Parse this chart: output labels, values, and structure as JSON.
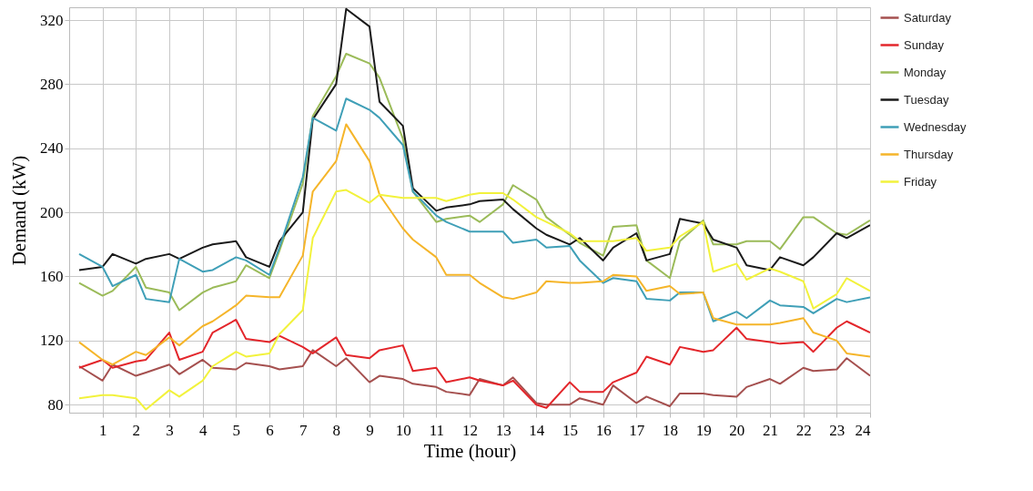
{
  "chart_data": {
    "type": "line",
    "xlabel": "Time (hour)",
    "ylabel": "Demand (kW)",
    "x": [
      0.3,
      1,
      1.3,
      2,
      2.3,
      3,
      3.3,
      4,
      4.3,
      5,
      5.3,
      6,
      6.3,
      7,
      7.3,
      8,
      8.3,
      9,
      9.3,
      10,
      10.3,
      11,
      11.3,
      12,
      12.3,
      13,
      13.3,
      14,
      14.3,
      15,
      15.3,
      16,
      16.3,
      17,
      17.3,
      18,
      18.3,
      19,
      19.3,
      20,
      20.3,
      21,
      21.3,
      22,
      22.3,
      23,
      23.3,
      24
    ],
    "xlim": [
      0,
      24
    ],
    "xticks": [
      1,
      2,
      3,
      4,
      5,
      6,
      7,
      8,
      9,
      10,
      11,
      12,
      13,
      14,
      15,
      16,
      17,
      18,
      19,
      20,
      21,
      22,
      23,
      24
    ],
    "ylim": [
      75,
      328
    ],
    "yticks": [
      80,
      120,
      160,
      200,
      240,
      280,
      320
    ],
    "grid": true,
    "legend": "right",
    "series": [
      {
        "name": "Saturday",
        "color": "#a5504f",
        "values": [
          104,
          95,
          105,
          98,
          100,
          105,
          99,
          108,
          103,
          102,
          106,
          104,
          102,
          104,
          114,
          104,
          109,
          94,
          98,
          96,
          93,
          91,
          88,
          86,
          96,
          92,
          97,
          81,
          80,
          80,
          84,
          80,
          92,
          81,
          85,
          79,
          87,
          87,
          86,
          85,
          91,
          96,
          93,
          103,
          101,
          102,
          109,
          98
        ]
      },
      {
        "name": "Sunday",
        "color": "#e3262b",
        "values": [
          103,
          108,
          103,
          107,
          108,
          125,
          108,
          113,
          125,
          133,
          121,
          119,
          123,
          116,
          112,
          122,
          111,
          109,
          114,
          117,
          101,
          103,
          94,
          97,
          95,
          92,
          95,
          80,
          78,
          94,
          88,
          88,
          94,
          100,
          110,
          105,
          116,
          113,
          114,
          128,
          121,
          119,
          118,
          119,
          113,
          128,
          132,
          125
        ]
      },
      {
        "name": "Monday",
        "color": "#9bbb59",
        "values": [
          156,
          148,
          151,
          166,
          153,
          150,
          139,
          150,
          153,
          157,
          167,
          159,
          176,
          218,
          260,
          285,
          299,
          293,
          284,
          246,
          213,
          194,
          196,
          198,
          194,
          205,
          217,
          208,
          197,
          186,
          181,
          173,
          191,
          192,
          170,
          159,
          182,
          195,
          180,
          180,
          182,
          182,
          177,
          197,
          197,
          187,
          186,
          195
        ]
      },
      {
        "name": "Tuesday",
        "color": "#1a1a1a",
        "values": [
          164,
          166,
          174,
          168,
          171,
          174,
          171,
          178,
          180,
          182,
          172,
          166,
          182,
          200,
          258,
          280,
          327,
          316,
          269,
          254,
          215,
          201,
          203,
          205,
          207,
          208,
          202,
          190,
          186,
          180,
          184,
          170,
          178,
          187,
          170,
          174,
          196,
          193,
          183,
          178,
          167,
          164,
          172,
          167,
          172,
          187,
          184,
          192
        ]
      },
      {
        "name": "Wednesday",
        "color": "#3f9fb7",
        "values": [
          174,
          166,
          154,
          161,
          146,
          144,
          171,
          163,
          164,
          172,
          170,
          161,
          178,
          222,
          259,
          251,
          271,
          264,
          259,
          242,
          213,
          198,
          194,
          188,
          188,
          188,
          181,
          183,
          178,
          179,
          170,
          156,
          159,
          157,
          146,
          145,
          150,
          150,
          132,
          138,
          134,
          145,
          142,
          141,
          137,
          146,
          144,
          147
        ]
      },
      {
        "name": "Thursday",
        "color": "#f5b52a",
        "values": [
          119,
          108,
          105,
          113,
          111,
          122,
          117,
          129,
          132,
          142,
          148,
          147,
          147,
          173,
          213,
          232,
          255,
          232,
          211,
          190,
          183,
          172,
          161,
          161,
          156,
          147,
          146,
          150,
          157,
          156,
          156,
          157,
          161,
          160,
          151,
          154,
          149,
          150,
          134,
          130,
          130,
          130,
          131,
          134,
          125,
          120,
          112,
          110
        ]
      },
      {
        "name": "Friday",
        "color": "#f2f23c",
        "values": [
          84,
          86,
          86,
          84,
          77,
          89,
          85,
          95,
          104,
          113,
          110,
          112,
          124,
          139,
          184,
          213,
          214,
          206,
          211,
          209,
          209,
          209,
          207,
          211,
          212,
          212,
          208,
          197,
          194,
          187,
          182,
          182,
          182,
          184,
          176,
          178,
          185,
          194,
          163,
          168,
          158,
          165,
          163,
          157,
          140,
          149,
          159,
          151
        ]
      }
    ]
  }
}
